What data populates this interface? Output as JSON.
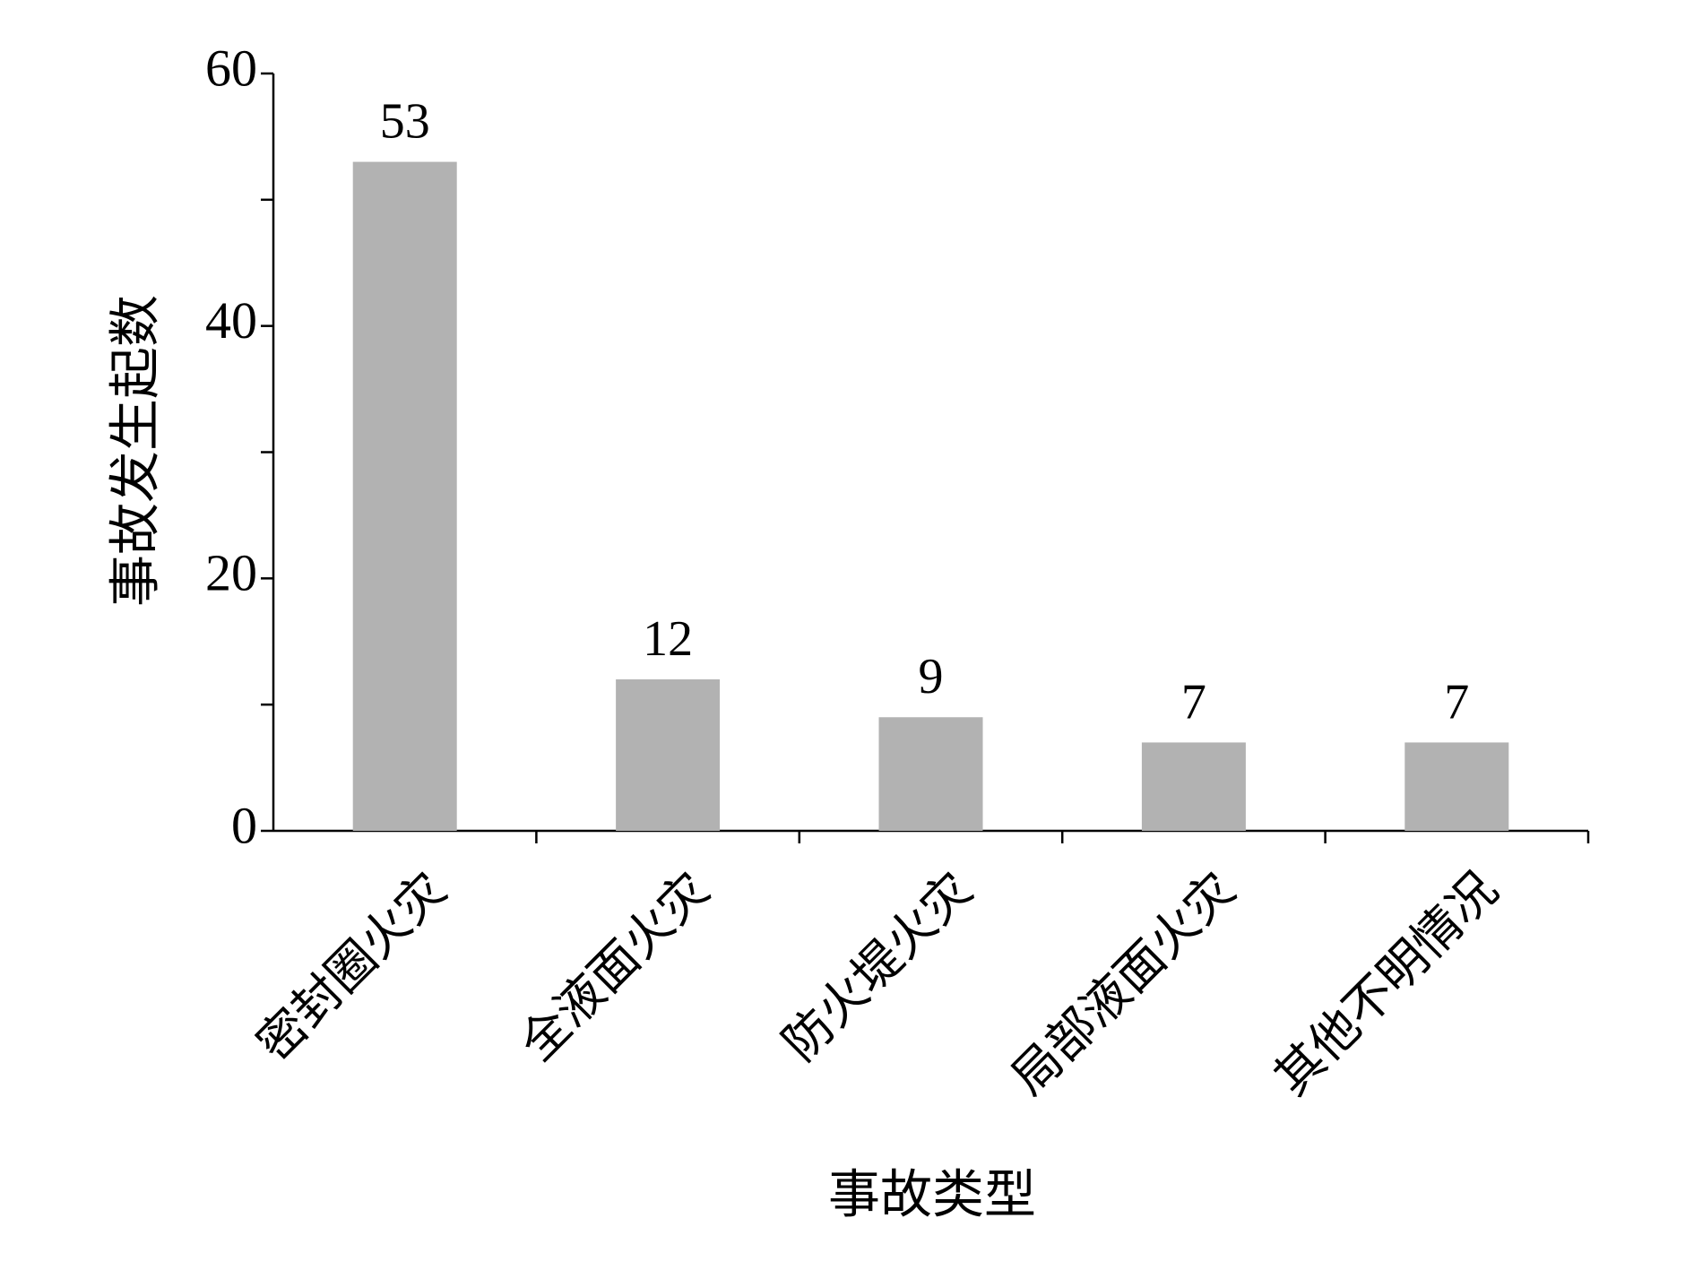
{
  "chart_data": {
    "type": "bar",
    "x_label": "事故类型",
    "y_label": "事故发生起数",
    "categories": [
      "密封圈火灾",
      "全液面火灾",
      "防火堤火灾",
      "局部液面火灾",
      "其他不明情况"
    ],
    "values": [
      53,
      12,
      9,
      7,
      7
    ],
    "color": "#b2b2b2",
    "ylim": [
      0,
      60
    ],
    "yticks": [
      0,
      20,
      40,
      60
    ],
    "minor_yticks": [
      10,
      30,
      50
    ],
    "grid": false
  }
}
